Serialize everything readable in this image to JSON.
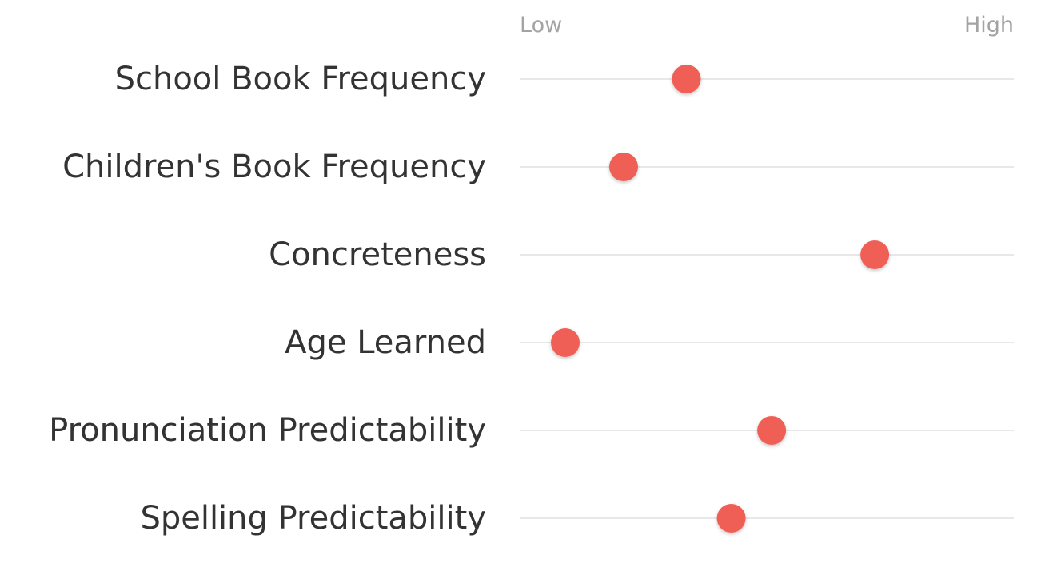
{
  "chart_data": {
    "type": "scatter",
    "x_axis": {
      "low_label": "Low",
      "high_label": "High",
      "range": [
        0,
        1
      ]
    },
    "categories": [
      "School Book Frequency",
      "Children's Book Frequency",
      "Concreteness",
      "Age Learned",
      "Pronunciation Predictability",
      "Spelling Predictability"
    ],
    "values": [
      0.32,
      0.18,
      0.74,
      0.05,
      0.51,
      0.42
    ],
    "dot_color": "#f05f57",
    "line_color": "#d9d9d9",
    "grid": false,
    "legend": "none"
  }
}
